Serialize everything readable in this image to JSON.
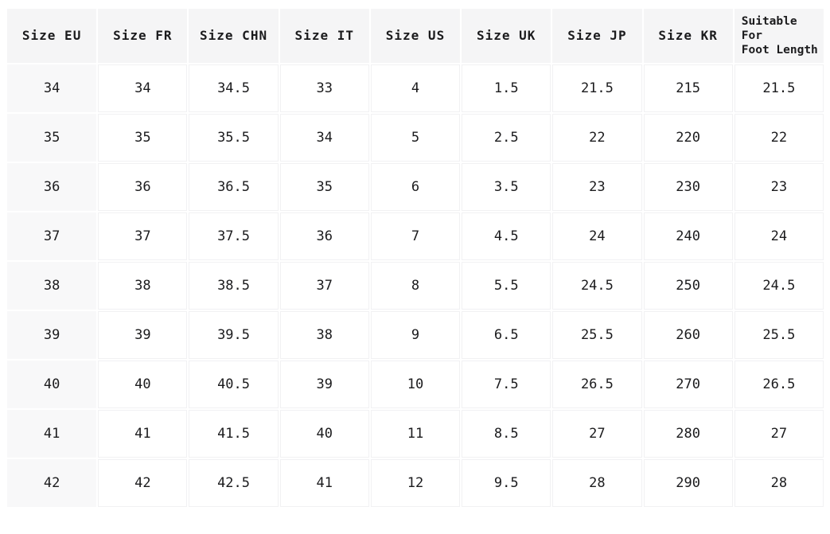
{
  "chart_data": {
    "type": "table",
    "columns": [
      "Size EU",
      "Size FR",
      "Size CHN",
      "Size IT",
      "Size US",
      "Size UK",
      "Size JP",
      "Size KR",
      "Suitable For\nFoot Length"
    ],
    "rows": [
      [
        "34",
        "34",
        "34.5",
        "33",
        "4",
        "1.5",
        "21.5",
        "215",
        "21.5"
      ],
      [
        "35",
        "35",
        "35.5",
        "34",
        "5",
        "2.5",
        "22",
        "220",
        "22"
      ],
      [
        "36",
        "36",
        "36.5",
        "35",
        "6",
        "3.5",
        "23",
        "230",
        "23"
      ],
      [
        "37",
        "37",
        "37.5",
        "36",
        "7",
        "4.5",
        "24",
        "240",
        "24"
      ],
      [
        "38",
        "38",
        "38.5",
        "37",
        "8",
        "5.5",
        "24.5",
        "250",
        "24.5"
      ],
      [
        "39",
        "39",
        "39.5",
        "38",
        "9",
        "6.5",
        "25.5",
        "260",
        "25.5"
      ],
      [
        "40",
        "40",
        "40.5",
        "39",
        "10",
        "7.5",
        "26.5",
        "270",
        "26.5"
      ],
      [
        "41",
        "41",
        "41.5",
        "40",
        "11",
        "8.5",
        "27",
        "280",
        "27"
      ],
      [
        "42",
        "42",
        "42.5",
        "41",
        "12",
        "9.5",
        "28",
        "290",
        "28"
      ]
    ]
  },
  "colors": {
    "page_bg": "#ffffff",
    "header_bg": "#f5f5f6",
    "row_header_bg": "#f8f8f9",
    "cell_border": "#f1f1f3",
    "text": "#1b1b1d"
  }
}
